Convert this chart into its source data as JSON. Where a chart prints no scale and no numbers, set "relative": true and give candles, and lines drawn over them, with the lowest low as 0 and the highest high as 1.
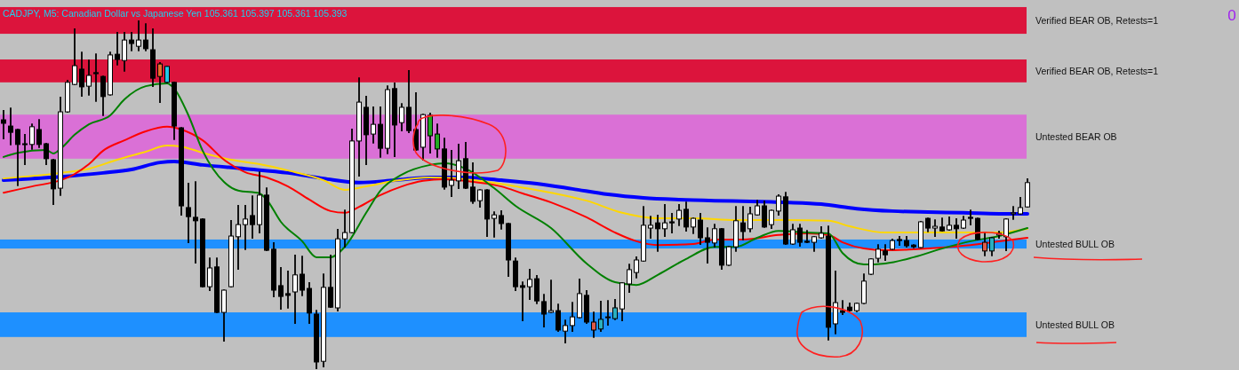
{
  "chart_data": {
    "type": "candlestick",
    "relative": true,
    "title": "CADJPY, M5:  Canadian Dollar vs Japanese Yen  105.361 105.397 105.361 105.393",
    "annotations": [
      "0"
    ],
    "categories": [
      null,
      null,
      null,
      null,
      null,
      null,
      null,
      null,
      null,
      null,
      null,
      null,
      null,
      null,
      null,
      null,
      null,
      null,
      null,
      null,
      null,
      null,
      null,
      null,
      null,
      null,
      null,
      null,
      null,
      null,
      null,
      null,
      null,
      null,
      null,
      null,
      null,
      null,
      null,
      null,
      null,
      null,
      null,
      null,
      null,
      null,
      null,
      null,
      null,
      null,
      null,
      null,
      null,
      null,
      null,
      null,
      null,
      null,
      null,
      null,
      null,
      null,
      null,
      null,
      null,
      null,
      null,
      null,
      null,
      null,
      null,
      null,
      null,
      null,
      null,
      null,
      null,
      null,
      null,
      null,
      null,
      null,
      null,
      null,
      null,
      null,
      null,
      null,
      null,
      null,
      null,
      null,
      null,
      null,
      null,
      null,
      null,
      null,
      null,
      null,
      null,
      null,
      null,
      null,
      null,
      null,
      null,
      null,
      null,
      null,
      null,
      null,
      null,
      null,
      null,
      null,
      null,
      null,
      null,
      null,
      null,
      null,
      null,
      null,
      null,
      null,
      null,
      null,
      null,
      null,
      null,
      null,
      null,
      null,
      null,
      null,
      null,
      null,
      null,
      null,
      null,
      null,
      null,
      null,
      null
    ],
    "ohlc": [
      [
        0.716,
        0.742,
        0.662,
        0.706
      ],
      [
        0.698,
        0.749,
        0.645,
        0.68
      ],
      [
        0.688,
        0.688,
        0.527,
        0.645
      ],
      [
        0.647,
        0.673,
        0.588,
        0.645
      ],
      [
        0.645,
        0.703,
        0.632,
        0.696
      ],
      [
        0.688,
        0.716,
        0.637,
        0.645
      ],
      [
        0.647,
        0.647,
        0.588,
        0.604
      ],
      [
        0.601,
        0.601,
        0.473,
        0.517
      ],
      [
        0.519,
        0.78,
        0.499,
        0.739
      ],
      [
        0.739,
        0.829,
        0.739,
        0.824
      ],
      [
        0.818,
        0.977,
        0.818,
        0.872
      ],
      [
        0.862,
        0.91,
        0.785,
        0.811
      ],
      [
        0.813,
        0.887,
        0.788,
        0.844
      ],
      [
        0.852,
        0.905,
        0.77,
        0.849
      ],
      [
        0.841,
        0.841,
        0.729,
        0.783
      ],
      [
        0.788,
        0.91,
        0.788,
        0.903
      ],
      [
        0.905,
        0.967,
        0.875,
        0.89
      ],
      [
        0.887,
        0.967,
        0.857,
        0.946
      ],
      [
        0.946,
        0.967,
        0.916,
        0.936
      ],
      [
        0.928,
        1,
        0.916,
        0.946
      ],
      [
        0.946,
        0.992,
        0.916,
        0.921
      ],
      [
        0.918,
        0.977,
        0.813,
        0.836
      ],
      [
        0.841,
        0.88,
        0.767,
        0.877
      ],
      [
        0.824,
        0.87,
        0.824,
        0.87
      ],
      [
        0.824,
        0.824,
        0.66,
        0.698
      ],
      [
        0.693,
        0.693,
        0.442,
        0.468
      ],
      [
        0.463,
        0.532,
        0.363,
        0.437
      ],
      [
        0.435,
        0.537,
        0.304,
        0.425
      ],
      [
        0.43,
        0.43,
        0.235,
        0.235
      ],
      [
        0.235,
        0.317,
        0.225,
        0.289
      ],
      [
        0.292,
        0.317,
        0.161,
        0.161
      ],
      [
        0.161,
        0.225,
        0.079,
        0.225
      ],
      [
        0.235,
        0.425,
        0.235,
        0.381
      ],
      [
        0.379,
        0.468,
        0.286,
        0.414
      ],
      [
        0.414,
        0.468,
        0.343,
        0.43
      ],
      [
        0.44,
        0.496,
        0.376,
        0.414
      ],
      [
        0.414,
        0.565,
        0.391,
        0.499
      ],
      [
        0.499,
        0.519,
        0.34,
        0.34
      ],
      [
        0.343,
        0.361,
        0.207,
        0.225
      ],
      [
        0.238,
        0.289,
        0.171,
        0.207
      ],
      [
        0.215,
        0.279,
        0.174,
        0.21
      ],
      [
        0.22,
        0.325,
        0.13,
        0.269
      ],
      [
        0.271,
        0.322,
        0.21,
        0.225
      ],
      [
        0.23,
        0.246,
        0.13,
        0.159
      ],
      [
        0.156,
        0.166,
        0,
        0.018
      ],
      [
        0.02,
        0.271,
        0.005,
        0.233
      ],
      [
        0.233,
        0.325,
        0.176,
        0.176
      ],
      [
        0.174,
        0.399,
        0.166,
        0.373
      ],
      [
        0.373,
        0.455,
        0.35,
        0.391
      ],
      [
        0.391,
        0.688,
        0.391,
        0.655
      ],
      [
        0.655,
        0.836,
        0.555,
        0.767
      ],
      [
        0.752,
        0.783,
        0.588,
        0.673
      ],
      [
        0.675,
        0.752,
        0.65,
        0.703
      ],
      [
        0.703,
        0.752,
        0.609,
        0.634
      ],
      [
        0.634,
        0.813,
        0.619,
        0.803
      ],
      [
        0.806,
        0.821,
        0.611,
        0.701
      ],
      [
        0.708,
        0.762,
        0.685,
        0.752
      ],
      [
        0.752,
        0.857,
        0.68,
        0.685
      ],
      [
        0.688,
        0.793,
        0.629,
        0.629
      ],
      [
        0.637,
        0.731,
        0.601,
        0.731
      ],
      [
        0.729,
        0.734,
        0.621,
        0.67
      ],
      [
        0.675,
        0.703,
        0.609,
        0.632
      ],
      [
        0.632,
        0.662,
        0.517,
        0.522
      ],
      [
        0.527,
        0.627,
        0.496,
        0.542
      ],
      [
        0.54,
        0.645,
        0.519,
        0.598
      ],
      [
        0.604,
        0.65,
        0.519,
        0.519
      ],
      [
        0.522,
        0.591,
        0.476,
        0.481
      ],
      [
        0.483,
        0.514,
        0.465,
        0.514
      ],
      [
        0.514,
        0.514,
        0.381,
        0.43
      ],
      [
        0.432,
        0.45,
        0.379,
        0.442
      ],
      [
        0.44,
        0.453,
        0.402,
        0.417
      ],
      [
        0.417,
        0.417,
        0.266,
        0.312
      ],
      [
        0.309,
        0.317,
        0.225,
        0.235
      ],
      [
        0.238,
        0.248,
        0.138,
        0.233
      ],
      [
        0.235,
        0.284,
        0.199,
        0.256
      ],
      [
        0.258,
        0.266,
        0.187,
        0.194
      ],
      [
        0.192,
        0.212,
        0.12,
        0.156
      ],
      [
        0.161,
        0.253,
        0.161,
        0.166
      ],
      [
        0.166,
        0.184,
        0.107,
        0.11
      ],
      [
        0.107,
        0.138,
        0.074,
        0.123
      ],
      [
        0.123,
        0.189,
        0.107,
        0.148
      ],
      [
        0.146,
        0.256,
        0.146,
        0.215
      ],
      [
        0.21,
        0.223,
        0.13,
        0.133
      ],
      [
        0.133,
        0.161,
        0.09,
        0.11
      ],
      [
        0.113,
        0.192,
        0.107,
        0.141
      ],
      [
        0.146,
        0.194,
        0.125,
        0.148
      ],
      [
        0.143,
        0.197,
        0.141,
        0.174
      ],
      [
        0.171,
        0.246,
        0.138,
        0.246
      ],
      [
        0.243,
        0.299,
        0.22,
        0.284
      ],
      [
        0.276,
        0.32,
        0.261,
        0.312
      ],
      [
        0.309,
        0.465,
        0.309,
        0.412
      ],
      [
        0.404,
        0.437,
        0.376,
        0.412
      ],
      [
        0.419,
        0.44,
        0.338,
        0.402
      ],
      [
        0.402,
        0.471,
        0.381,
        0.419
      ],
      [
        0.422,
        0.445,
        0.391,
        0.419
      ],
      [
        0.43,
        0.471,
        0.412,
        0.455
      ],
      [
        0.458,
        0.478,
        0.396,
        0.407
      ],
      [
        0.407,
        0.432,
        0.389,
        0.432
      ],
      [
        0.427,
        0.445,
        0.358,
        0.376
      ],
      [
        0.376,
        0.404,
        0.304,
        0.363
      ],
      [
        0.361,
        0.414,
        0.35,
        0.402
      ],
      [
        0.402,
        0.402,
        0.286,
        0.297
      ],
      [
        0.297,
        0.35,
        0.297,
        0.35
      ],
      [
        0.35,
        0.465,
        0.338,
        0.425
      ],
      [
        0.419,
        0.465,
        0.371,
        0.394
      ],
      [
        0.402,
        0.463,
        0.394,
        0.445
      ],
      [
        0.442,
        0.483,
        0.442,
        0.468
      ],
      [
        0.468,
        0.481,
        0.407,
        0.407
      ],
      [
        0.414,
        0.455,
        0.404,
        0.455
      ],
      [
        0.453,
        0.499,
        0.442,
        0.496
      ],
      [
        0.494,
        0.506,
        0.358,
        0.358
      ],
      [
        0.358,
        0.414,
        0.358,
        0.399
      ],
      [
        0.404,
        0.414,
        0.353,
        0.363
      ],
      [
        0.366,
        0.396,
        0.363,
        0.363
      ],
      [
        0.363,
        0.379,
        0.338,
        0.379
      ],
      [
        0.376,
        0.407,
        0.376,
        0.389
      ],
      [
        0.381,
        0.409,
        0.082,
        0.118
      ],
      [
        0.128,
        0.279,
        0.1,
        0.189
      ],
      [
        0.166,
        0.194,
        0.156,
        0.161
      ],
      [
        0.176,
        0.187,
        0.166,
        0.166
      ],
      [
        0.166,
        0.187,
        0.164,
        0.187
      ],
      [
        0.187,
        0.271,
        0.187,
        0.251
      ],
      [
        0.271,
        0.315,
        0.271,
        0.315
      ],
      [
        0.317,
        0.355,
        0.307,
        0.343
      ],
      [
        0.338,
        0.355,
        0.312,
        0.327
      ],
      [
        0.343,
        0.371,
        0.343,
        0.368
      ],
      [
        0.371,
        0.379,
        0.355,
        0.368
      ],
      [
        0.368,
        0.379,
        0.35,
        0.353
      ],
      [
        0.355,
        0.355,
        0.348,
        0.35
      ],
      [
        0.348,
        0.422,
        0.348,
        0.422
      ],
      [
        0.432,
        0.432,
        0.394,
        0.404
      ],
      [
        0.404,
        0.427,
        0.381,
        0.409
      ],
      [
        0.407,
        0.432,
        0.396,
        0.396
      ],
      [
        0.399,
        0.435,
        0.399,
        0.412
      ],
      [
        0.412,
        0.43,
        0.376,
        0.402
      ],
      [
        0.404,
        0.437,
        0.404,
        0.427
      ],
      [
        0.435,
        0.455,
        0.414,
        0.432
      ],
      [
        0.432,
        0.432,
        0.371,
        0.371
      ],
      [
        0.363,
        0.389,
        0.325,
        0.338
      ],
      [
        0.338,
        0.376,
        0.325,
        0.376
      ],
      [
        0.384,
        0.394,
        0.376,
        0.389
      ],
      [
        0.379,
        0.43,
        0.34,
        0.43
      ],
      [
        0.445,
        0.465,
        0.43,
        0.448
      ],
      [
        0.445,
        0.491,
        0.445,
        0.463
      ],
      [
        0.465,
        0.545,
        0.465,
        0.535
      ]
    ],
    "colors": [
      null,
      null,
      null,
      null,
      null,
      null,
      null,
      null,
      null,
      null,
      null,
      null,
      null,
      null,
      null,
      null,
      null,
      null,
      null,
      null,
      null,
      null,
      "#e8702a",
      "#22c8e8",
      null,
      null,
      null,
      null,
      null,
      null,
      null,
      null,
      null,
      null,
      null,
      null,
      null,
      null,
      null,
      null,
      null,
      null,
      null,
      null,
      null,
      null,
      null,
      null,
      null,
      null,
      null,
      null,
      null,
      null,
      null,
      null,
      null,
      null,
      null,
      null,
      "#22aa22",
      "#22aa22",
      null,
      null,
      null,
      null,
      null,
      null,
      null,
      null,
      null,
      null,
      null,
      null,
      null,
      null,
      null,
      null,
      null,
      null,
      null,
      null,
      null,
      "#e05a48",
      "#2ab0c0",
      "#e05a48",
      "#2ab0c0",
      null,
      null,
      null,
      null,
      null,
      null,
      null,
      null,
      null,
      null,
      null,
      null,
      null,
      null,
      null,
      null,
      null,
      null,
      null,
      null,
      null,
      null,
      null,
      null,
      null,
      null,
      null,
      null,
      null,
      null,
      null,
      null,
      null,
      null,
      null,
      null,
      null,
      null,
      null,
      null,
      null,
      null,
      null,
      null,
      null,
      null,
      null,
      null,
      null,
      null,
      null,
      "#e05a48",
      "#2ab0c0",
      null,
      null,
      null,
      null,
      null
    ],
    "series": [
      {
        "type": "line",
        "color": "#0000ff",
        "values": [
          0.542,
          null,
          null,
          null,
          null,
          null,
          null,
          null,
          0.552,
          null,
          null,
          null,
          null,
          null,
          0.563,
          null,
          null,
          null,
          0.573,
          null,
          null,
          null,
          0.593,
          null,
          0.596,
          null,
          null,
          null,
          0.586,
          null,
          null,
          null,
          null,
          null,
          0.575,
          null,
          null,
          null,
          null,
          null,
          0.563,
          null,
          null,
          null,
          null,
          0.547,
          null,
          null,
          null,
          null,
          0.535,
          null,
          null,
          null,
          null,
          0.542,
          null,
          null,
          null,
          null,
          0.55,
          null,
          null,
          null,
          null,
          0.55,
          null,
          null,
          null,
          null,
          0.542,
          null,
          null,
          null,
          null,
          0.532,
          null,
          null,
          null,
          null,
          0.517,
          null,
          null,
          null,
          null,
          0.501,
          null,
          null,
          null,
          null,
          0.491,
          null,
          null,
          null,
          null,
          0.486,
          null,
          null,
          null,
          null,
          0.483,
          null,
          null,
          null,
          null,
          0.481,
          null,
          null,
          null,
          null,
          0.478,
          null,
          null,
          null,
          null,
          0.473,
          null,
          null,
          null,
          null,
          0.46,
          null,
          null,
          null,
          null,
          0.453,
          null,
          null,
          null,
          null,
          0.45,
          null,
          null,
          null,
          null,
          0.448,
          null,
          null,
          null,
          null,
          0.445,
          null,
          null,
          null,
          0.445
        ]
      },
      {
        "type": "line",
        "color": "#ffd700",
        "values": [
          0.547,
          null,
          null,
          null,
          null,
          null,
          null,
          null,
          0.563,
          null,
          null,
          null,
          0.575,
          null,
          null,
          null,
          0.601,
          null,
          null,
          null,
          0.624,
          null,
          null,
          0.642,
          null,
          0.639,
          null,
          null,
          0.621,
          null,
          null,
          null,
          0.601,
          null,
          null,
          null,
          0.588,
          null,
          null,
          null,
          0.57,
          null,
          null,
          null,
          null,
          0.542,
          null,
          null,
          0.514,
          null,
          null,
          0.524,
          null,
          null,
          null,
          0.54,
          null,
          null,
          null,
          null,
          0.55,
          null,
          null,
          null,
          0.547,
          null,
          null,
          null,
          0.537,
          null,
          null,
          null,
          0.524,
          null,
          null,
          null,
          null,
          0.506,
          null,
          null,
          null,
          null,
          0.483,
          null,
          null,
          null,
          null,
          0.448,
          null,
          null,
          null,
          null,
          0.432,
          null,
          null,
          null,
          null,
          0.432,
          null,
          null,
          null,
          null,
          null,
          0.427,
          null,
          null,
          null,
          null,
          null,
          null,
          0.427,
          null,
          null,
          null,
          null,
          null,
          0.425,
          null,
          null,
          0.409,
          null,
          null,
          null,
          null,
          0.391,
          null,
          null,
          null,
          0.391,
          null,
          null,
          null,
          0.391,
          null,
          null,
          null,
          0.391,
          null,
          null,
          null,
          0.391,
          null,
          null,
          null,
          0.402
        ]
      },
      {
        "type": "line",
        "color": "#ff0000",
        "values": [
          0.506,
          null,
          null,
          null,
          0.524,
          null,
          null,
          null,
          0.542,
          null,
          0.56,
          null,
          0.588,
          null,
          0.627,
          null,
          null,
          0.657,
          null,
          null,
          0.683,
          null,
          null,
          0.696,
          null,
          0.688,
          null,
          null,
          0.657,
          null,
          null,
          0.601,
          null,
          null,
          0.565,
          null,
          null,
          0.55,
          null,
          null,
          0.524,
          null,
          null,
          0.486,
          null,
          null,
          0.453,
          null,
          0.448,
          null,
          0.465,
          null,
          null,
          0.499,
          null,
          null,
          0.524,
          null,
          null,
          0.54,
          null,
          null,
          0.545,
          null,
          null,
          0.54,
          null,
          null,
          null,
          null,
          0.524,
          null,
          null,
          0.504,
          null,
          null,
          null,
          0.478,
          null,
          null,
          null,
          null,
          0.435,
          null,
          null,
          null,
          0.391,
          null,
          null,
          0.366,
          null,
          null,
          0.355,
          null,
          null,
          null,
          null,
          0.358,
          null,
          null,
          0.371,
          null,
          null,
          null,
          0.371,
          null,
          null,
          null,
          null,
          0.384,
          null,
          null,
          null,
          0.389,
          null,
          null,
          0.384,
          null,
          0.363,
          null,
          null,
          0.345,
          null,
          null,
          0.34,
          null,
          null,
          null,
          0.343,
          null,
          null,
          null,
          0.348,
          null,
          null,
          null,
          0.355,
          null,
          null,
          null,
          0.366,
          null,
          null,
          null,
          0.376
        ]
      },
      {
        "type": "line",
        "color": "#008000",
        "values": [
          0.609,
          null,
          0.621,
          null,
          null,
          null,
          0.629,
          0.619,
          0.632,
          null,
          0.673,
          null,
          0.703,
          null,
          null,
          0.729,
          null,
          0.775,
          null,
          null,
          0.813,
          null,
          null,
          0.821,
          0.806,
          null,
          0.729,
          null,
          0.627,
          null,
          null,
          0.537,
          null,
          0.512,
          null,
          null,
          0.504,
          0.486,
          null,
          0.422,
          null,
          null,
          0.366,
          null,
          0.32,
          null,
          0.32,
          null,
          0.35,
          null,
          null,
          0.448,
          null,
          0.512,
          null,
          null,
          0.558,
          null,
          null,
          null,
          0.586,
          null,
          0.591,
          null,
          null,
          0.575,
          null,
          null,
          null,
          0.519,
          null,
          null,
          0.468,
          null,
          null,
          null,
          null,
          0.404,
          null,
          null,
          null,
          null,
          0.302,
          null,
          null,
          null,
          0.248,
          null,
          null,
          0.24,
          null,
          null,
          0.269,
          null,
          null,
          null,
          0.315,
          null,
          null,
          null,
          0.35,
          null,
          null,
          0.35,
          null,
          null,
          0.376,
          null,
          null,
          0.396,
          null,
          null,
          null,
          0.391,
          null,
          null,
          0.389,
          null,
          0.332,
          null,
          null,
          0.299,
          null,
          null,
          0.302,
          null,
          null,
          null,
          0.32,
          null,
          null,
          null,
          0.345,
          null,
          null,
          null,
          0.366,
          null,
          null,
          null,
          0.381,
          null,
          null,
          null,
          0.404
        ]
      }
    ],
    "bands": [
      {
        "axis": "y",
        "from": 0.964,
        "to": 1.041,
        "label": "Verified BEAR OB, Retests=1",
        "color": "#dc143c"
      },
      {
        "axis": "y",
        "from": 0.824,
        "to": 0.89,
        "label": "Verified BEAR OB, Retests=1",
        "color": "#dc143c"
      },
      {
        "axis": "y",
        "from": 0.604,
        "to": 0.731,
        "label": "Untested BEAR OB",
        "color": "#da70d6"
      },
      {
        "axis": "y",
        "from": 0.345,
        "to": 0.371,
        "label": "Untested BULL OB",
        "color": "#1e90ff"
      },
      {
        "axis": "y",
        "from": 0.09,
        "to": 0.161,
        "label": "Untested BULL OB",
        "color": "#1e90ff"
      }
    ]
  }
}
